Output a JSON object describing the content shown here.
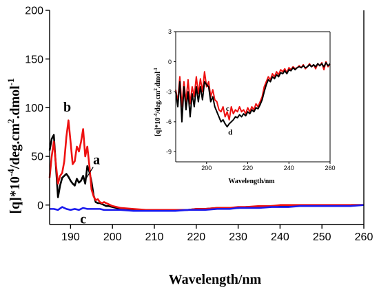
{
  "chart_data": [
    {
      "type": "line",
      "xlabel": "Wavelength/nm",
      "ylabel_main": "[q]*10",
      "ylabel_exp": "-4",
      "ylabel_unit": "/deg.cm",
      "ylabel_unit_exp": "2",
      "ylabel_unit_rest": ".dmol",
      "ylabel_unit_rest_exp": "-1",
      "xlim": [
        185,
        260
      ],
      "ylim": [
        -20,
        200
      ],
      "xticks": [
        190,
        200,
        210,
        220,
        230,
        240,
        250,
        260
      ],
      "yticks": [
        0,
        50,
        100,
        150,
        200
      ],
      "annotations": [
        {
          "text": "a",
          "x": 196.2,
          "y": 42
        },
        {
          "text": "b",
          "x": 189.2,
          "y": 96
        },
        {
          "text": "c",
          "x": 193,
          "y": -19
        }
      ],
      "series": [
        {
          "label": "a",
          "color": "#000000",
          "x": [
            185,
            185.5,
            186,
            186.5,
            187,
            187.5,
            188,
            188.5,
            189,
            189.5,
            190,
            190.5,
            191,
            191.5,
            192,
            192.5,
            193,
            193.5,
            194,
            194.5,
            195,
            195.5,
            196,
            196.5,
            197,
            197.5,
            198,
            198.5,
            199,
            200,
            202,
            205,
            208,
            210,
            212,
            215,
            218,
            220,
            222,
            225,
            228,
            230,
            232,
            235,
            238,
            240,
            242,
            245,
            248,
            250,
            252,
            255,
            257,
            260
          ],
          "y": [
            56,
            68,
            72,
            40,
            8,
            20,
            28,
            30,
            32,
            29,
            25,
            22,
            20,
            27,
            23,
            25,
            30,
            22,
            40,
            34,
            24,
            10,
            3,
            2,
            2,
            1,
            0,
            -1,
            -1,
            -2,
            -4,
            -5,
            -6,
            -6,
            -6,
            -5,
            -5,
            -4,
            -4,
            -3,
            -3,
            -3,
            -2,
            -2,
            -1,
            -1,
            -1,
            -1,
            -1,
            -1,
            -1,
            -1,
            0,
            0
          ]
        },
        {
          "label": "b",
          "color": "#ee1111",
          "x": [
            185,
            185.5,
            186,
            186.5,
            187,
            187.5,
            188,
            188.5,
            189,
            189.5,
            190,
            190.5,
            191,
            191.5,
            192,
            192.5,
            193,
            193.5,
            194,
            194.5,
            195,
            195.5,
            196,
            196.5,
            197,
            197.5,
            198,
            198.5,
            199,
            200,
            202,
            205,
            208,
            210,
            212,
            215,
            218,
            220,
            222,
            225,
            228,
            230,
            232,
            235,
            238,
            240,
            242,
            245,
            248,
            250,
            252,
            255,
            257,
            260
          ],
          "y": [
            28,
            50,
            65,
            42,
            22,
            30,
            33,
            45,
            70,
            87,
            65,
            42,
            45,
            60,
            55,
            65,
            78,
            50,
            60,
            40,
            16,
            9,
            5,
            6,
            3,
            2,
            3,
            2,
            1,
            -1,
            -3,
            -4,
            -5,
            -5,
            -5,
            -5,
            -5,
            -4,
            -4,
            -3,
            -3,
            -2,
            -2,
            -1,
            -1,
            0,
            0,
            0,
            0,
            0,
            0,
            0,
            0,
            0
          ]
        },
        {
          "label": "c",
          "color": "#1a1aee",
          "x": [
            185,
            186,
            187,
            188,
            189,
            190,
            191,
            192,
            193,
            194,
            195,
            196,
            197,
            198,
            200,
            202,
            205,
            208,
            210,
            212,
            215,
            218,
            220,
            222,
            225,
            228,
            230,
            232,
            235,
            238,
            240,
            242,
            245,
            248,
            250,
            252,
            255,
            257,
            260
          ],
          "y": [
            -4,
            -4,
            -5,
            -2,
            -4,
            -5,
            -4,
            -5,
            -3,
            -4,
            -4,
            -4,
            -4,
            -5,
            -5,
            -5,
            -6,
            -6,
            -6,
            -6,
            -6,
            -5,
            -5,
            -5,
            -4,
            -4,
            -3,
            -3,
            -3,
            -2,
            -2,
            -2,
            -1,
            -1,
            -1,
            -1,
            -1,
            -1,
            0
          ]
        }
      ]
    },
    {
      "type": "line",
      "inset": true,
      "xlabel": "Wavelength/nm",
      "ylabel_main": "[q]*10",
      "ylabel_exp": "-4",
      "ylabel_unit": "/deg.cm",
      "ylabel_unit_exp": "2",
      "ylabel_unit_rest": ".dmol",
      "ylabel_unit_rest_exp": "-1",
      "xlim": [
        185,
        260
      ],
      "ylim": [
        -10,
        3
      ],
      "xticks": [
        200,
        220,
        240,
        260
      ],
      "yticks": [
        3,
        0,
        -3,
        -6,
        -9
      ],
      "annotations": [
        {
          "text": "c",
          "x": 210.2,
          "y": -4.9
        },
        {
          "text": "d",
          "x": 211.5,
          "y": -7.3
        }
      ],
      "series": [
        {
          "label": "c",
          "color": "#ee1111",
          "x": [
            185,
            186,
            187,
            188,
            189,
            190,
            191,
            192,
            193,
            194,
            195,
            196,
            197,
            198,
            199,
            200,
            201,
            202,
            203,
            204,
            205,
            206,
            207,
            208,
            209,
            210,
            211,
            212,
            213,
            214,
            215,
            216,
            217,
            218,
            219,
            220,
            221,
            222,
            223,
            224,
            225,
            226,
            227,
            228,
            229,
            230,
            231,
            232,
            233,
            234,
            235,
            236,
            237,
            238,
            239,
            240,
            241,
            242,
            243,
            244,
            245,
            246,
            247,
            248,
            249,
            250,
            251,
            252,
            253,
            254,
            255,
            256,
            257,
            258,
            259,
            260
          ],
          "y": [
            -2.8,
            -4.0,
            -1.5,
            -4.5,
            -2.0,
            -4.0,
            -1.8,
            -4.2,
            -2.5,
            -3.5,
            -1.5,
            -3.2,
            -1.7,
            -3.0,
            -1.0,
            -2.5,
            -2.0,
            -3.5,
            -2.8,
            -3.8,
            -4.0,
            -4.8,
            -5.0,
            -4.5,
            -5.5,
            -5.0,
            -5.8,
            -4.5,
            -5.2,
            -4.8,
            -5.0,
            -4.5,
            -5.0,
            -4.8,
            -5.2,
            -4.6,
            -5.0,
            -4.5,
            -4.8,
            -4.2,
            -4.5,
            -4.0,
            -3.5,
            -2.5,
            -2.0,
            -1.5,
            -1.8,
            -1.2,
            -1.5,
            -1.0,
            -1.3,
            -0.8,
            -1.0,
            -0.7,
            -1.1,
            -0.6,
            -0.8,
            -0.5,
            -0.7,
            -0.6,
            -0.4,
            -0.6,
            -0.3,
            -0.7,
            -0.5,
            -0.2,
            -0.5,
            -0.3,
            -0.7,
            -0.2,
            -0.4,
            -0.1,
            -0.8,
            0.0,
            -0.5,
            -0.2
          ]
        },
        {
          "label": "d",
          "color": "#000000",
          "x": [
            185,
            186,
            187,
            188,
            189,
            190,
            191,
            192,
            193,
            194,
            195,
            196,
            197,
            198,
            199,
            200,
            201,
            202,
            203,
            204,
            205,
            206,
            207,
            208,
            209,
            210,
            211,
            212,
            213,
            214,
            215,
            216,
            217,
            218,
            219,
            220,
            221,
            222,
            223,
            224,
            225,
            226,
            227,
            228,
            229,
            230,
            231,
            232,
            233,
            234,
            235,
            236,
            237,
            238,
            239,
            240,
            241,
            242,
            243,
            244,
            245,
            246,
            247,
            248,
            249,
            250,
            251,
            252,
            253,
            254,
            255,
            256,
            257,
            258,
            259,
            260
          ],
          "y": [
            -3.0,
            -4.5,
            -2.0,
            -6.0,
            -2.5,
            -4.8,
            -3.0,
            -5.5,
            -3.2,
            -4.5,
            -2.5,
            -4.0,
            -2.5,
            -3.8,
            -2.0,
            -2.3,
            -2.5,
            -4.0,
            -3.5,
            -4.5,
            -5.0,
            -5.5,
            -6.0,
            -5.8,
            -6.2,
            -6.5,
            -6.2,
            -6.0,
            -5.8,
            -5.5,
            -5.6,
            -5.3,
            -5.5,
            -5.2,
            -5.4,
            -5.0,
            -5.2,
            -4.8,
            -5.0,
            -4.6,
            -4.7,
            -4.3,
            -3.8,
            -3.0,
            -2.3,
            -1.8,
            -2.0,
            -1.5,
            -1.7,
            -1.3,
            -1.5,
            -1.1,
            -1.2,
            -0.9,
            -1.2,
            -0.8,
            -0.9,
            -0.6,
            -0.8,
            -0.6,
            -0.5,
            -0.6,
            -0.4,
            -0.6,
            -0.5,
            -0.3,
            -0.5,
            -0.3,
            -0.5,
            -0.2,
            -0.4,
            -0.2,
            -0.5,
            -0.1,
            -0.4,
            -0.2
          ]
        }
      ]
    }
  ]
}
